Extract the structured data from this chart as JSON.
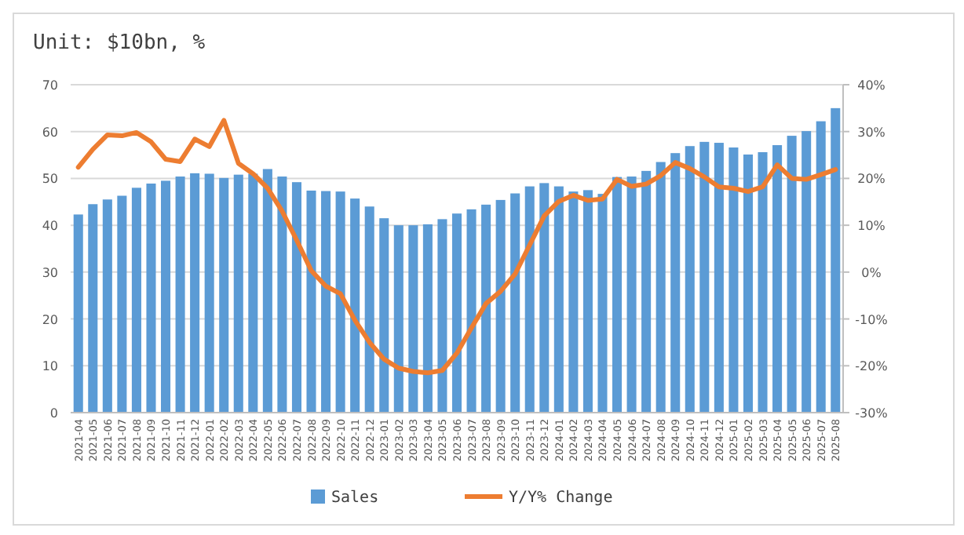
{
  "chart_data": {
    "type": "bar",
    "title": "Unit: $10bn, %",
    "categories": [
      "2021-04",
      "2021-05",
      "2021-06",
      "2021-07",
      "2021-08",
      "2021-09",
      "2021-10",
      "2021-11",
      "2021-12",
      "2022-01",
      "2022-02",
      "2022-03",
      "2022-04",
      "2022-05",
      "2022-06",
      "2022-07",
      "2022-08",
      "2022-09",
      "2022-10",
      "2022-11",
      "2022-12",
      "2023-01",
      "2023-02",
      "2023-03",
      "2023-04",
      "2023-05",
      "2023-06",
      "2023-07",
      "2023-08",
      "2023-09",
      "2023-10",
      "2023-11",
      "2023-12",
      "2024-01",
      "2024-02",
      "2024-03",
      "2024-04",
      "2024-05",
      "2024-06",
      "2024-07",
      "2024-08",
      "2024-09",
      "2024-10",
      "2024-11",
      "2024-12",
      "2025-01",
      "2025-02",
      "2025-03",
      "2025-04",
      "2025-05",
      "2025-06",
      "2025-07",
      "2025-08"
    ],
    "series": [
      {
        "name": "Sales",
        "color": "#5b9bd5",
        "values": [
          42.3,
          44.5,
          45.5,
          46.3,
          48,
          48.9,
          49.5,
          50.4,
          51.1,
          51,
          50.1,
          50.8,
          51,
          52,
          50.4,
          49.2,
          47.4,
          47.3,
          47.2,
          45.7,
          44,
          41.5,
          40,
          40,
          40.2,
          41.3,
          42.5,
          43.4,
          44.4,
          45.4,
          46.8,
          48.3,
          49,
          48.3,
          47.2,
          47.5,
          46.7,
          50.3,
          50.4,
          51.6,
          53.5,
          55.4,
          56.9,
          57.8,
          57.6,
          56.6,
          55.1,
          55.6,
          57.1,
          59.1,
          60.1,
          62.2,
          65
        ]
      },
      {
        "name": "Y/Y% Change",
        "type": "line",
        "axis": "y2",
        "color": "#ed7d31",
        "values": [
          22.4,
          26.2,
          29.3,
          29.1,
          29.8,
          27.8,
          24.1,
          23.6,
          28.4,
          26.8,
          32.4,
          23.2,
          21,
          17.9,
          13,
          6.8,
          0.3,
          -3,
          -4.6,
          -10.3,
          -15,
          -18.6,
          -20.5,
          -21.2,
          -21.5,
          -21,
          -17.3,
          -11.9,
          -6.7,
          -4.1,
          -0.4,
          5.8,
          12,
          15.1,
          16.4,
          15.3,
          15.6,
          19.8,
          18.3,
          18.8,
          20.6,
          23.4,
          22.1,
          20.3,
          18.2,
          17.9,
          17.2,
          18.2,
          22.9,
          20,
          19.8,
          20.8,
          21.9
        ]
      }
    ],
    "ylim": [
      0,
      70
    ],
    "yticks": [
      0,
      10,
      20,
      30,
      40,
      50,
      60,
      70
    ],
    "y2lim": [
      -30,
      40
    ],
    "y2ticks": [
      {
        "value": -30,
        "label": "-30%"
      },
      {
        "value": -20,
        "label": "-20%"
      },
      {
        "value": -10,
        "label": "-10%"
      },
      {
        "value": 0,
        "label": "0%"
      },
      {
        "value": 10,
        "label": "10%"
      },
      {
        "value": 20,
        "label": "20%"
      },
      {
        "value": 30,
        "label": "30%"
      },
      {
        "value": 40,
        "label": "40%"
      }
    ],
    "grid": "y",
    "legend": "bottom",
    "marker": "none",
    "line_style": "solid"
  }
}
